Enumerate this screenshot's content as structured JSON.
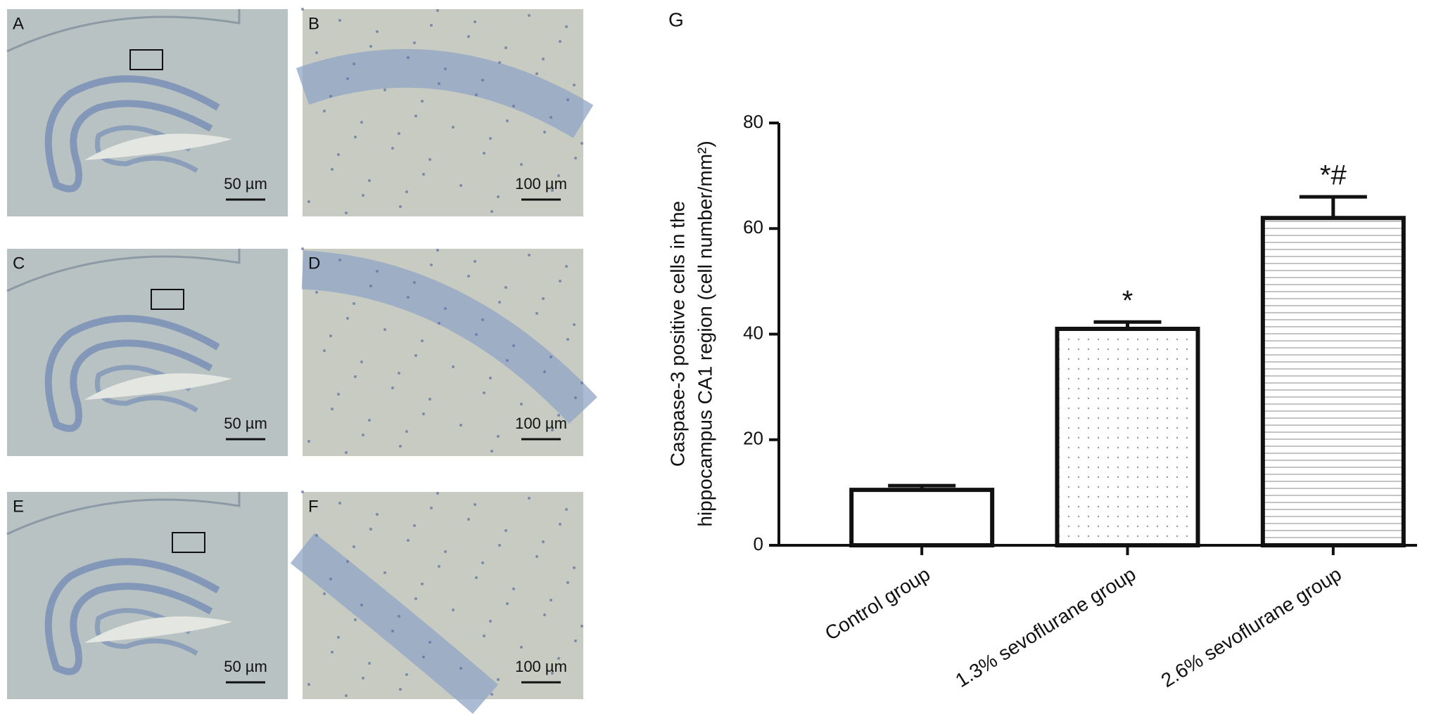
{
  "figure_label": "G",
  "panels": [
    {
      "label": "A",
      "scale_bar": "50 µm"
    },
    {
      "label": "B",
      "scale_bar": "100 µm"
    },
    {
      "label": "C",
      "scale_bar": "50 µm"
    },
    {
      "label": "D",
      "scale_bar": "100 µm"
    },
    {
      "label": "E",
      "scale_bar": "50 µm"
    },
    {
      "label": "F",
      "scale_bar": "100 µm"
    }
  ],
  "chart_data": {
    "type": "bar",
    "ylabel": [
      "Caspase-3 positive cells in the",
      "hippocampus CA1 region (cell number/mm²)"
    ],
    "categories": [
      "Control group",
      "1.3% sevoflurane group",
      "2.6% sevoflurane group"
    ],
    "values": [
      10.5,
      41,
      62
    ],
    "errors": [
      0.8,
      1.3,
      4
    ],
    "annotations": [
      null,
      "*",
      "*#"
    ],
    "patterns": [
      "solid",
      "dots",
      "hlines"
    ],
    "color": "#ffffff",
    "ylim": [
      0,
      80
    ],
    "yticks": [
      0,
      20,
      40,
      60,
      80
    ]
  }
}
